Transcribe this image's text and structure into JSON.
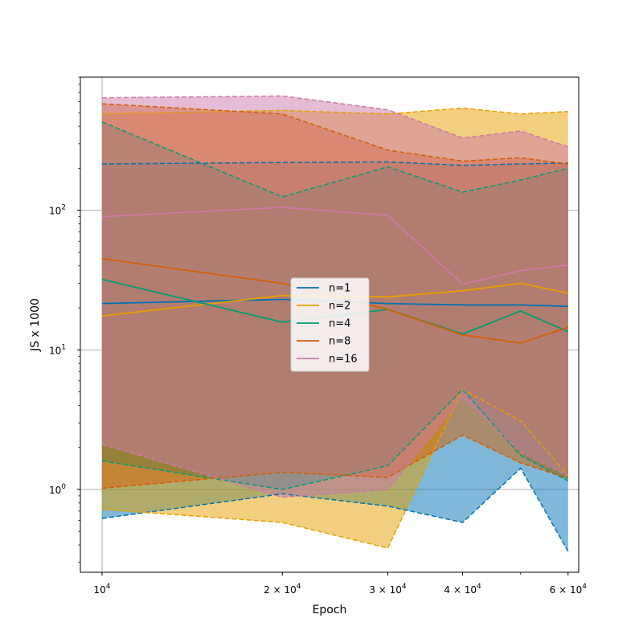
{
  "chart_data": {
    "type": "line",
    "title": "",
    "xlabel": "Epoch",
    "ylabel": "JS x 1000",
    "xscale": "log",
    "yscale": "log",
    "xlim": [
      9200,
      62500
    ],
    "ylim": [
      0.255,
      900
    ],
    "grid": true,
    "legend_position": "center",
    "x": [
      10000,
      20000,
      30000,
      40000,
      50000,
      60000
    ],
    "x_ticks": [
      {
        "value": 10000,
        "label": "10",
        "exp": "4",
        "mult": ""
      },
      {
        "value": 20000,
        "label": "2 × 10",
        "exp": "4",
        "mult": ""
      },
      {
        "value": 30000,
        "label": "3 × 10",
        "exp": "4",
        "mult": ""
      },
      {
        "value": 40000,
        "label": "4 × 10",
        "exp": "4",
        "mult": ""
      },
      {
        "value": 60000,
        "label": "6 × 10",
        "exp": "4",
        "mult": ""
      }
    ],
    "y_ticks": [
      {
        "value": 1,
        "label": "10",
        "exp": "0"
      },
      {
        "value": 10,
        "label": "10",
        "exp": "1"
      },
      {
        "value": 100,
        "label": "10",
        "exp": "2"
      }
    ],
    "series": [
      {
        "name": "n=1",
        "color": "#0072B2",
        "mean": [
          21.5,
          23.0,
          21.5,
          21.0,
          21.0,
          20.5
        ],
        "lower": [
          0.62,
          0.93,
          0.76,
          0.58,
          1.42,
          0.36
        ],
        "upper": [
          215,
          220,
          222,
          210,
          215,
          218
        ]
      },
      {
        "name": "n=2",
        "color": "#E69F00",
        "mean": [
          17.5,
          24.5,
          24.0,
          26.5,
          30.0,
          25.5
        ],
        "lower": [
          0.72,
          0.58,
          0.38,
          5.2,
          3.1,
          1.25
        ],
        "upper": [
          490,
          520,
          490,
          540,
          490,
          510
        ]
      },
      {
        "name": "n=4",
        "color": "#009E73",
        "mean": [
          32.0,
          15.8,
          19.5,
          13.0,
          19.0,
          13.5
        ],
        "lower": [
          1.6,
          1.0,
          1.48,
          5.2,
          1.75,
          1.15
        ],
        "upper": [
          430,
          125,
          205,
          135,
          165,
          200
        ]
      },
      {
        "name": "n=8",
        "color": "#D55E00",
        "mean": [
          45.0,
          30.0,
          19.5,
          12.8,
          11.2,
          14.5
        ],
        "lower": [
          1.02,
          1.33,
          1.22,
          2.45,
          1.55,
          1.2
        ],
        "upper": [
          580,
          490,
          270,
          225,
          238,
          215
        ]
      },
      {
        "name": "n=16",
        "color": "#CC79A7",
        "mean": [
          90.0,
          105.0,
          92.0,
          29.5,
          37.0,
          40.5
        ],
        "lower": [
          2.1,
          0.88,
          1.0,
          4.6,
          1.85,
          1.25
        ],
        "upper": [
          640,
          660,
          525,
          330,
          370,
          285
        ]
      }
    ]
  }
}
